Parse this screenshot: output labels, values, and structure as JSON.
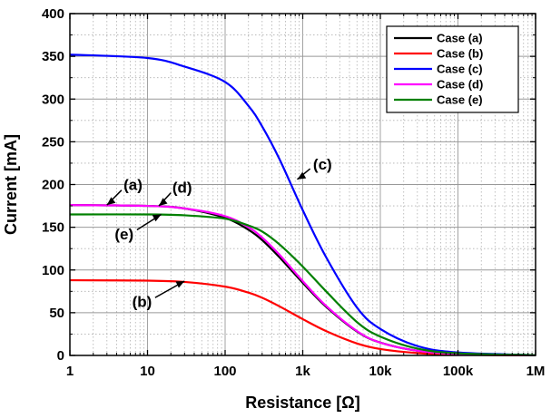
{
  "chart_data": {
    "type": "line",
    "title": "",
    "xlabel": "Resistance [Ω]",
    "ylabel": "Current [mA]",
    "xscale": "log",
    "xlim": [
      1,
      1000000
    ],
    "ylim": [
      0,
      400
    ],
    "x_ticks": [
      {
        "value": 1,
        "label": "1"
      },
      {
        "value": 10,
        "label": "10"
      },
      {
        "value": 100,
        "label": "100"
      },
      {
        "value": 1000,
        "label": "1k"
      },
      {
        "value": 10000,
        "label": "10k"
      },
      {
        "value": 100000,
        "label": "100k"
      },
      {
        "value": 1000000,
        "label": "1M"
      }
    ],
    "y_ticks": [
      0,
      50,
      100,
      150,
      200,
      250,
      300,
      350,
      400
    ],
    "grid": true,
    "legend_position": "top-right",
    "series": [
      {
        "name": "Case (a)",
        "color": "#000000",
        "x": [
          1,
          10,
          30,
          100,
          200,
          300,
          500,
          1000,
          2000,
          5000,
          10000,
          30000,
          100000,
          1000000
        ],
        "y": [
          176,
          175,
          172,
          161,
          147,
          135,
          115,
          85,
          57,
          28,
          15,
          5.5,
          1.7,
          0.2
        ]
      },
      {
        "name": "Case (b)",
        "color": "#ff0000",
        "x": [
          1,
          10,
          30,
          100,
          200,
          300,
          500,
          1000,
          2000,
          5000,
          10000,
          30000,
          100000,
          1000000
        ],
        "y": [
          88,
          87.5,
          86,
          80.5,
          73.5,
          67.5,
          57.5,
          42.5,
          28.5,
          14,
          7.5,
          2.8,
          0.9,
          0.1
        ]
      },
      {
        "name": "Case (c)",
        "color": "#0000ff",
        "x": [
          1,
          10,
          30,
          100,
          200,
          300,
          500,
          1000,
          2000,
          5000,
          10000,
          30000,
          100000,
          1000000
        ],
        "y": [
          352,
          348,
          338,
          320,
          292,
          268,
          230,
          170,
          115,
          56,
          31,
          11,
          3.5,
          0.4
        ]
      },
      {
        "name": "Case (d)",
        "color": "#ff00ff",
        "x": [
          1,
          10,
          30,
          100,
          200,
          300,
          500,
          1000,
          2000,
          5000,
          10000,
          30000,
          100000,
          1000000
        ],
        "y": [
          176,
          175,
          172,
          163,
          150,
          138,
          118,
          87,
          58,
          28.5,
          15,
          5.5,
          1.7,
          0.2
        ]
      },
      {
        "name": "Case (e)",
        "color": "#008000",
        "x": [
          1,
          10,
          30,
          100,
          200,
          300,
          500,
          1000,
          2000,
          5000,
          10000,
          30000,
          100000,
          1000000
        ],
        "y": [
          165,
          165,
          164,
          160,
          152,
          145,
          130,
          104,
          75,
          39,
          22,
          8,
          2.5,
          0.3
        ]
      }
    ],
    "annotations": [
      {
        "text": "(a)",
        "target_x": 3,
        "target_y": 176,
        "label_x": 6.5,
        "label_y": 200
      },
      {
        "text": "(d)",
        "target_x": 14,
        "target_y": 175,
        "label_x": 28,
        "label_y": 197
      },
      {
        "text": "(e)",
        "target_x": 15,
        "target_y": 165,
        "label_x": 5.0,
        "label_y": 142
      },
      {
        "text": "(b)",
        "target_x": 30,
        "target_y": 87,
        "label_x": 8.5,
        "label_y": 63
      },
      {
        "text": "(c)",
        "target_x": 850,
        "target_y": 206,
        "label_x": 1800,
        "label_y": 224
      }
    ]
  }
}
